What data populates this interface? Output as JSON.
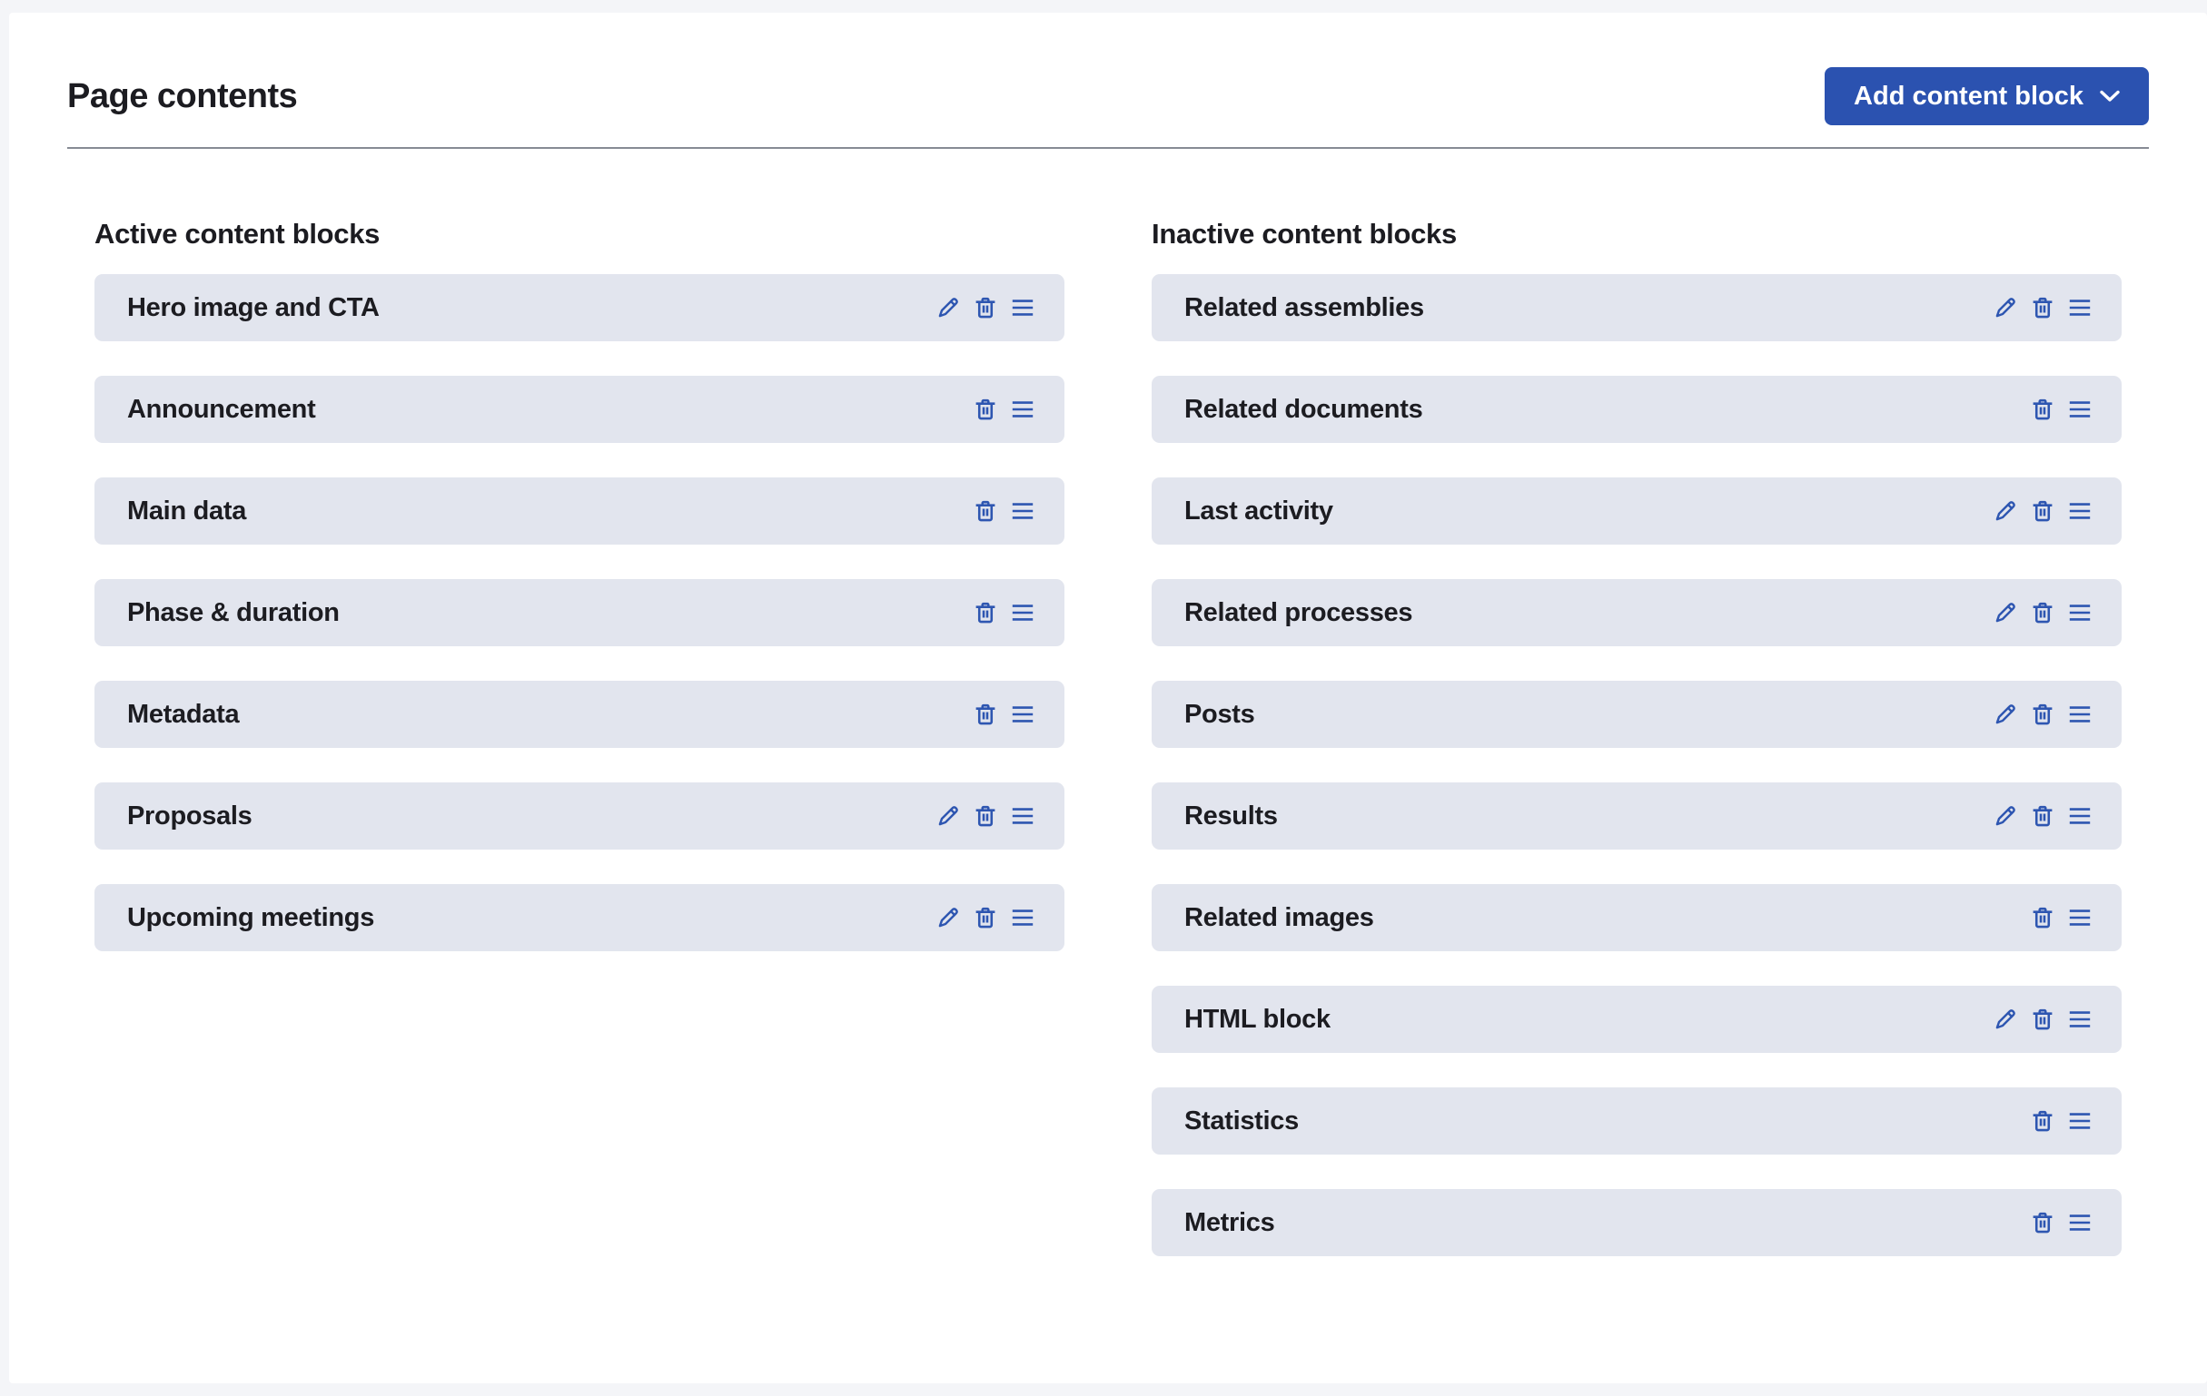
{
  "page": {
    "title": "Page contents"
  },
  "header": {
    "add_button": {
      "label": "Add content block",
      "icon": "chevron-down-icon"
    }
  },
  "colors": {
    "primary_blue": "#2b52b0",
    "icon_blue": "#2e56b1",
    "row_background": "#e2e5ee",
    "card_background": "#ffffff",
    "page_background": "#f4f5f8",
    "divider_gray": "#878b94",
    "text_dark": "#1c1c21"
  },
  "icons": {
    "edit": "edit-pencil-icon",
    "delete": "delete-trash-icon",
    "drag": "drag-handle-icon"
  },
  "columns": {
    "active": {
      "heading": "Active content blocks",
      "blocks": [
        {
          "label": "Hero image and CTA",
          "actions": [
            "edit",
            "delete",
            "drag"
          ]
        },
        {
          "label": "Announcement",
          "actions": [
            "delete",
            "drag"
          ]
        },
        {
          "label": "Main data",
          "actions": [
            "delete",
            "drag"
          ]
        },
        {
          "label": "Phase & duration",
          "actions": [
            "delete",
            "drag"
          ]
        },
        {
          "label": "Metadata",
          "actions": [
            "delete",
            "drag"
          ]
        },
        {
          "label": "Proposals",
          "actions": [
            "edit",
            "delete",
            "drag"
          ]
        },
        {
          "label": "Upcoming meetings",
          "actions": [
            "edit",
            "delete",
            "drag"
          ]
        }
      ]
    },
    "inactive": {
      "heading": "Inactive content blocks",
      "blocks": [
        {
          "label": "Related assemblies",
          "actions": [
            "edit",
            "delete",
            "drag"
          ]
        },
        {
          "label": "Related documents",
          "actions": [
            "delete",
            "drag"
          ]
        },
        {
          "label": "Last activity",
          "actions": [
            "edit",
            "delete",
            "drag"
          ]
        },
        {
          "label": "Related processes",
          "actions": [
            "edit",
            "delete",
            "drag"
          ]
        },
        {
          "label": "Posts",
          "actions": [
            "edit",
            "delete",
            "drag"
          ]
        },
        {
          "label": "Results",
          "actions": [
            "edit",
            "delete",
            "drag"
          ]
        },
        {
          "label": "Related images",
          "actions": [
            "delete",
            "drag"
          ]
        },
        {
          "label": "HTML block",
          "actions": [
            "edit",
            "delete",
            "drag"
          ]
        },
        {
          "label": "Statistics",
          "actions": [
            "delete",
            "drag"
          ]
        },
        {
          "label": "Metrics",
          "actions": [
            "delete",
            "drag"
          ]
        }
      ]
    }
  }
}
